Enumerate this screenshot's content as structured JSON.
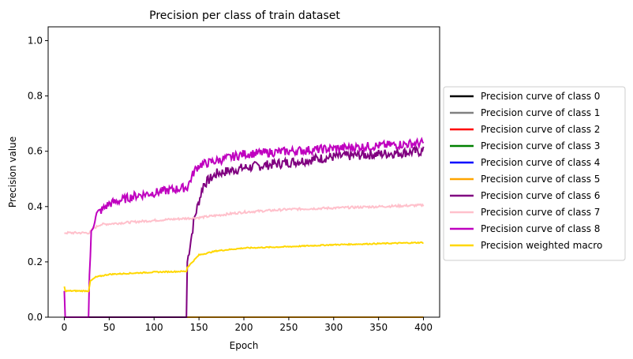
{
  "chart_data": {
    "type": "line",
    "title": "Precision per class of train dataset",
    "xlabel": "Epoch",
    "ylabel": "Precision value",
    "xlim": [
      -18,
      418
    ],
    "ylim": [
      0.0,
      1.05
    ],
    "xticks": [
      0,
      50,
      100,
      150,
      200,
      250,
      300,
      350,
      400
    ],
    "yticks": [
      0.0,
      0.2,
      0.4,
      0.6,
      0.8,
      1.0
    ],
    "grid": false,
    "legend_position": "outside-right",
    "series": [
      {
        "name": "Precision curve of class 0",
        "color": "#000000",
        "points": [
          [
            0,
            0
          ],
          [
            400,
            0
          ]
        ]
      },
      {
        "name": "Precision curve of class 1",
        "color": "#808080",
        "points": [
          [
            0,
            0
          ],
          [
            400,
            0
          ]
        ]
      },
      {
        "name": "Precision curve of class 2",
        "color": "#ff0000",
        "points": [
          [
            0,
            0
          ],
          [
            400,
            0
          ]
        ]
      },
      {
        "name": "Precision curve of class 3",
        "color": "#008000",
        "points": [
          [
            0,
            0
          ],
          [
            400,
            0
          ]
        ]
      },
      {
        "name": "Precision curve of class 4",
        "color": "#0000ff",
        "points": [
          [
            0,
            0
          ],
          [
            400,
            0
          ]
        ]
      },
      {
        "name": "Precision curve of class 5",
        "color": "#ffa500",
        "points": [
          [
            0,
            0
          ],
          [
            400,
            0
          ]
        ]
      },
      {
        "name": "Precision curve of class 6",
        "color": "#800080",
        "noise": 0.018,
        "points": [
          [
            0,
            0
          ],
          [
            136,
            0
          ],
          [
            137,
            0.2
          ],
          [
            145,
            0.36
          ],
          [
            155,
            0.48
          ],
          [
            170,
            0.52
          ],
          [
            200,
            0.54
          ],
          [
            250,
            0.56
          ],
          [
            300,
            0.58
          ],
          [
            350,
            0.59
          ],
          [
            400,
            0.6
          ]
        ]
      },
      {
        "name": "Precision curve of class 7",
        "color": "#ffc0cb",
        "noise": 0.004,
        "points": [
          [
            0,
            0.305
          ],
          [
            28,
            0.305
          ],
          [
            32,
            0.32
          ],
          [
            40,
            0.335
          ],
          [
            60,
            0.34
          ],
          [
            100,
            0.35
          ],
          [
            150,
            0.36
          ],
          [
            200,
            0.38
          ],
          [
            250,
            0.39
          ],
          [
            300,
            0.395
          ],
          [
            350,
            0.4
          ],
          [
            400,
            0.405
          ]
        ]
      },
      {
        "name": "Precision curve of class 8",
        "color": "#bf00bf",
        "noise": 0.016,
        "points": [
          [
            0,
            0.1
          ],
          [
            1,
            0
          ],
          [
            27,
            0
          ],
          [
            28,
            0.15
          ],
          [
            30,
            0.3
          ],
          [
            35,
            0.37
          ],
          [
            50,
            0.41
          ],
          [
            80,
            0.44
          ],
          [
            100,
            0.45
          ],
          [
            137,
            0.47
          ],
          [
            145,
            0.53
          ],
          [
            150,
            0.55
          ],
          [
            200,
            0.59
          ],
          [
            250,
            0.6
          ],
          [
            300,
            0.61
          ],
          [
            350,
            0.62
          ],
          [
            400,
            0.63
          ]
        ]
      },
      {
        "name": "Precision weighted macro",
        "color": "#ffd700",
        "noise": 0.002,
        "points": [
          [
            0,
            0.11
          ],
          [
            1,
            0.095
          ],
          [
            27,
            0.095
          ],
          [
            29,
            0.13
          ],
          [
            35,
            0.145
          ],
          [
            50,
            0.155
          ],
          [
            100,
            0.163
          ],
          [
            136,
            0.166
          ],
          [
            137,
            0.18
          ],
          [
            150,
            0.225
          ],
          [
            170,
            0.24
          ],
          [
            200,
            0.25
          ],
          [
            250,
            0.255
          ],
          [
            300,
            0.262
          ],
          [
            350,
            0.266
          ],
          [
            400,
            0.27
          ]
        ]
      }
    ]
  }
}
